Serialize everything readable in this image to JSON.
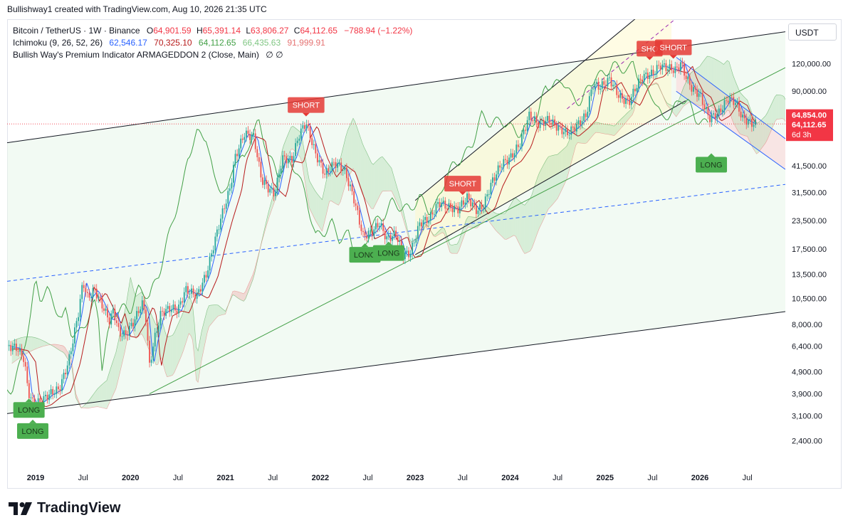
{
  "header": {
    "created_by": "Bullishway1 created with TradingView.com, Aug 10, 2026 21:35 UTC"
  },
  "legend": {
    "symbol": "Bitcoin / TetherUS · 1W · Binance",
    "o_label": "O",
    "o_value": "64,901.59",
    "h_label": "H",
    "h_value": "65,391.14",
    "l_label": "L",
    "l_value": "63,806.27",
    "c_label": "C",
    "c_value": "64,112.65",
    "change": "−788.94 (−1.22%)",
    "ichimoku_label": "Ichimoku (9, 26, 52, 26)",
    "ichimoku_values": [
      "62,546.17",
      "70,325.10",
      "64,112.65",
      "66,435.63",
      "91,999.91"
    ],
    "indicator_label": "Bullish Way's Premium Indicator ARMAGEDDON 2 (Close, Main)",
    "indicator_icons": "∅  ∅"
  },
  "currency_button": "USDT",
  "footer": {
    "brand": "TradingView"
  },
  "colors": {
    "up": "#26a69a",
    "down": "#ef5350",
    "tenkan": "#2962ff",
    "kijun": "#b71c1c",
    "span_a": "#43a047",
    "span_b": "#e57373",
    "lagging": "#43a047",
    "price_label": "#f23645",
    "long_bg": "#4caf50",
    "short_bg": "#e53935"
  },
  "chart_data": {
    "type": "line",
    "y_scale": "log",
    "ylim": [
      1900,
      190000
    ],
    "y_ticks": [
      {
        "v": 120000,
        "label": "120,000.00"
      },
      {
        "v": 90000,
        "label": "90,000.00"
      },
      {
        "v": 41500,
        "label": "41,500.00"
      },
      {
        "v": 31500,
        "label": "31,500.00"
      },
      {
        "v": 23500,
        "label": "23,500.00"
      },
      {
        "v": 17500,
        "label": "17,500.00"
      },
      {
        "v": 13500,
        "label": "13,500.00"
      },
      {
        "v": 10500,
        "label": "10,500.00"
      },
      {
        "v": 8000,
        "label": "8,000.00"
      },
      {
        "v": 6400,
        "label": "6,400.00"
      },
      {
        "v": 4900,
        "label": "4,900.00"
      },
      {
        "v": 3900,
        "label": "3,900.00"
      },
      {
        "v": 3100,
        "label": "3,100.00"
      },
      {
        "v": 2400,
        "label": "2,400.00"
      }
    ],
    "x_ticks": [
      {
        "t": 2019.0,
        "label": "2019",
        "bold": true
      },
      {
        "t": 2019.5,
        "label": "Jul"
      },
      {
        "t": 2020.0,
        "label": "2020",
        "bold": true
      },
      {
        "t": 2020.5,
        "label": "Jul"
      },
      {
        "t": 2021.0,
        "label": "2021",
        "bold": true
      },
      {
        "t": 2021.5,
        "label": "Jul"
      },
      {
        "t": 2022.0,
        "label": "2022",
        "bold": true
      },
      {
        "t": 2022.5,
        "label": "Jul"
      },
      {
        "t": 2023.0,
        "label": "2023",
        "bold": true
      },
      {
        "t": 2023.5,
        "label": "Jul"
      },
      {
        "t": 2024.0,
        "label": "2024",
        "bold": true
      },
      {
        "t": 2024.5,
        "label": "Jul"
      },
      {
        "t": 2025.0,
        "label": "2025",
        "bold": true
      },
      {
        "t": 2025.5,
        "label": "Jul"
      },
      {
        "t": 2026.0,
        "label": "2026",
        "bold": true
      },
      {
        "t": 2026.5,
        "label": "Jul"
      }
    ],
    "xlim": [
      2018.7,
      2026.9
    ],
    "price_path": [
      [
        2018.7,
        6400
      ],
      [
        2018.8,
        6300
      ],
      [
        2018.88,
        5600
      ],
      [
        2018.92,
        4000
      ],
      [
        2018.98,
        3500
      ],
      [
        2019.05,
        3600
      ],
      [
        2019.15,
        3900
      ],
      [
        2019.25,
        4100
      ],
      [
        2019.35,
        5500
      ],
      [
        2019.45,
        9000
      ],
      [
        2019.5,
        12500
      ],
      [
        2019.55,
        10500
      ],
      [
        2019.62,
        11500
      ],
      [
        2019.7,
        9800
      ],
      [
        2019.78,
        8300
      ],
      [
        2019.82,
        9300
      ],
      [
        2019.88,
        7300
      ],
      [
        2019.95,
        7200
      ],
      [
        2020.05,
        8500
      ],
      [
        2020.12,
        10000
      ],
      [
        2020.16,
        8800
      ],
      [
        2020.2,
        5200
      ],
      [
        2020.25,
        6800
      ],
      [
        2020.32,
        9000
      ],
      [
        2020.42,
        9500
      ],
      [
        2020.5,
        9300
      ],
      [
        2020.58,
        11500
      ],
      [
        2020.7,
        10800
      ],
      [
        2020.8,
        13500
      ],
      [
        2020.88,
        18500
      ],
      [
        2020.95,
        24000
      ],
      [
        2021.05,
        33000
      ],
      [
        2021.1,
        45000
      ],
      [
        2021.2,
        58000
      ],
      [
        2021.3,
        56000
      ],
      [
        2021.38,
        36000
      ],
      [
        2021.45,
        33000
      ],
      [
        2021.52,
        31000
      ],
      [
        2021.6,
        45000
      ],
      [
        2021.7,
        44000
      ],
      [
        2021.78,
        58000
      ],
      [
        2021.85,
        65000
      ],
      [
        2021.95,
        47000
      ],
      [
        2022.05,
        38000
      ],
      [
        2022.15,
        43000
      ],
      [
        2022.25,
        40000
      ],
      [
        2022.35,
        30000
      ],
      [
        2022.45,
        20000
      ],
      [
        2022.55,
        21000
      ],
      [
        2022.62,
        23000
      ],
      [
        2022.7,
        19500
      ],
      [
        2022.8,
        20500
      ],
      [
        2022.87,
        16500
      ],
      [
        2022.95,
        16800
      ],
      [
        2023.05,
        23000
      ],
      [
        2023.15,
        24000
      ],
      [
        2023.25,
        28500
      ],
      [
        2023.35,
        27000
      ],
      [
        2023.45,
        26500
      ],
      [
        2023.55,
        30000
      ],
      [
        2023.65,
        26000
      ],
      [
        2023.72,
        27500
      ],
      [
        2023.8,
        34500
      ],
      [
        2023.9,
        42000
      ],
      [
        2024.0,
        45000
      ],
      [
        2024.1,
        52000
      ],
      [
        2024.2,
        70000
      ],
      [
        2024.3,
        64000
      ],
      [
        2024.4,
        67000
      ],
      [
        2024.5,
        62000
      ],
      [
        2024.6,
        58000
      ],
      [
        2024.7,
        63000
      ],
      [
        2024.8,
        70000
      ],
      [
        2024.87,
        97000
      ],
      [
        2024.95,
        94000
      ],
      [
        2025.05,
        102000
      ],
      [
        2025.15,
        85000
      ],
      [
        2025.25,
        80000
      ],
      [
        2025.33,
        95000
      ],
      [
        2025.4,
        105000
      ],
      [
        2025.5,
        108000
      ],
      [
        2025.58,
        118000
      ],
      [
        2025.65,
        115000
      ],
      [
        2025.75,
        112000
      ],
      [
        2025.8,
        121000
      ],
      [
        2025.85,
        105000
      ],
      [
        2025.92,
        92000
      ],
      [
        2026.0,
        87000
      ],
      [
        2026.05,
        76000
      ],
      [
        2026.1,
        68000
      ],
      [
        2026.2,
        72000
      ],
      [
        2026.3,
        84000
      ],
      [
        2026.38,
        80000
      ],
      [
        2026.45,
        68000
      ],
      [
        2026.55,
        64500
      ],
      [
        2026.6,
        64112
      ]
    ],
    "current_price": {
      "value": 64112.65,
      "label": "64,112.65",
      "timer": "6d 3h"
    },
    "upper_label": {
      "value": 64854,
      "label": "64,854.00"
    },
    "signals": [
      {
        "type": "LONG",
        "label": "LONG",
        "t": 2018.93,
        "price": 3300
      },
      {
        "type": "LONG",
        "label": "LONG",
        "t": 2018.97,
        "price": 2650
      },
      {
        "type": "SHORT",
        "label": "SHORT",
        "t": 2021.85,
        "price": 78000
      },
      {
        "type": "LONG",
        "label": "LONG",
        "t": 2022.47,
        "price": 16500
      },
      {
        "type": "LONG",
        "label": "LONG",
        "t": 2022.72,
        "price": 16800
      },
      {
        "type": "SHORT",
        "label": "SHORT",
        "t": 2023.5,
        "price": 34500
      },
      {
        "type": "SHORT",
        "label": "SHO",
        "t": 2025.47,
        "price": 140000
      },
      {
        "type": "SHORT",
        "label": "SHORT",
        "t": 2025.72,
        "price": 142000
      },
      {
        "type": "LONG",
        "label": "LONG",
        "t": 2026.12,
        "price": 42000
      }
    ]
  }
}
